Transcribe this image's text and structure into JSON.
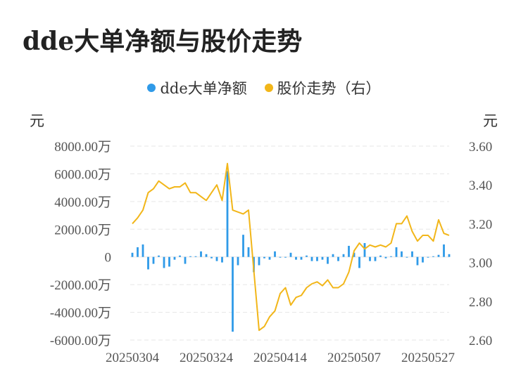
{
  "title": "dde大单净额与股价走势",
  "legend": [
    {
      "label": "dde大单净额",
      "color": "#2f9ae8"
    },
    {
      "label": "股价走势（右）",
      "color": "#f2b619"
    }
  ],
  "units": {
    "left": "元",
    "right": "元"
  },
  "colors": {
    "bar": "#2f9ae8",
    "line": "#f2b619",
    "grid": "#e6e6e6"
  },
  "chart_data": {
    "type": "bar+line",
    "left_axis": {
      "ylim": [
        -6000,
        8000
      ],
      "ticks": [
        8000,
        6000,
        4000,
        2000,
        0,
        -2000,
        -4000,
        -6000
      ],
      "tick_labels": [
        "8000.00万",
        "6000.00万",
        "4000.00万",
        "2000.00万",
        "0",
        "-2000.00万",
        "-4000.00万",
        "-6000.00万"
      ]
    },
    "right_axis": {
      "ylim": [
        2.6,
        3.6
      ],
      "ticks": [
        3.6,
        3.4,
        3.2,
        3.0,
        2.8,
        2.6
      ],
      "tick_labels": [
        "3.60",
        "3.40",
        "3.20",
        "3.00",
        "2.80",
        "2.60"
      ]
    },
    "x_tick_labels": [
      {
        "index": 0,
        "label": "20250304"
      },
      {
        "index": 14,
        "label": "20250324"
      },
      {
        "index": 28,
        "label": "20250414"
      },
      {
        "index": 42,
        "label": "20250507"
      },
      {
        "index": 56,
        "label": "20250527"
      }
    ],
    "grid": true,
    "series": [
      {
        "name": "dde大单净额",
        "kind": "bar",
        "axis": "left",
        "unit": "万",
        "values": [
          300,
          700,
          900,
          -900,
          -500,
          100,
          -800,
          -700,
          -200,
          100,
          -500,
          50,
          50,
          400,
          200,
          -100,
          -300,
          -400,
          6200,
          -5400,
          -600,
          1600,
          700,
          -1100,
          -600,
          -100,
          -200,
          400,
          -50,
          -50,
          300,
          -200,
          -200,
          100,
          -300,
          -300,
          -200,
          -500,
          200,
          -300,
          200,
          800,
          300,
          -800,
          1000,
          -300,
          -300,
          100,
          -100,
          50,
          700,
          400,
          -50,
          400,
          -600,
          -400,
          -50,
          50,
          150,
          900,
          200
        ]
      },
      {
        "name": "股价走势（右）",
        "kind": "line",
        "axis": "right",
        "unit": "元",
        "values": [
          3.2,
          3.23,
          3.27,
          3.36,
          3.38,
          3.42,
          3.4,
          3.38,
          3.39,
          3.39,
          3.41,
          3.36,
          3.36,
          3.34,
          3.32,
          3.36,
          3.4,
          3.32,
          3.51,
          3.27,
          3.26,
          3.25,
          3.27,
          2.96,
          2.65,
          2.67,
          2.72,
          2.75,
          2.84,
          2.87,
          2.78,
          2.82,
          2.83,
          2.87,
          2.89,
          2.9,
          2.88,
          2.91,
          2.87,
          2.87,
          2.89,
          2.95,
          3.06,
          3.1,
          3.07,
          3.09,
          3.08,
          3.09,
          3.08,
          3.1,
          3.2,
          3.2,
          3.24,
          3.16,
          3.11,
          3.14,
          3.14,
          3.11,
          3.22,
          3.15,
          3.14
        ]
      }
    ]
  }
}
